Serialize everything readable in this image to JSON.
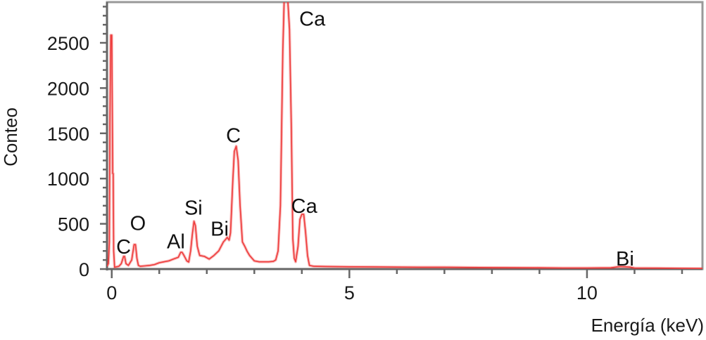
{
  "chart_data": {
    "type": "line",
    "title": "",
    "xlabel": "Energía (keV)",
    "ylabel": "Conteo",
    "xlim": [
      -0.1,
      12.43
    ],
    "ylim": [
      0,
      2950
    ],
    "x_ticks": [
      0,
      5,
      10
    ],
    "x_tick_labels": [
      "0",
      "5",
      "10"
    ],
    "x_minor_step": 1,
    "y_ticks": [
      0,
      500,
      1000,
      1500,
      2000,
      2500
    ],
    "y_tick_labels": [
      "0",
      "500",
      "1000",
      "1500",
      "2000",
      "2500"
    ],
    "y_minor_step": 100,
    "grid": false,
    "line_color": "#ee3b3b",
    "axis_color": "#666666",
    "series": [
      {
        "x": [
          -0.1,
          -0.07,
          -0.05,
          -0.04,
          -0.02,
          0.0,
          0.02,
          0.03,
          0.04,
          0.06,
          0.1,
          0.15,
          0.2,
          0.25,
          0.27,
          0.3,
          0.35,
          0.42,
          0.47,
          0.5,
          0.53,
          0.56,
          0.6,
          0.7,
          0.8,
          0.9,
          1.0,
          1.1,
          1.2,
          1.3,
          1.4,
          1.45,
          1.48,
          1.52,
          1.58,
          1.62,
          1.66,
          1.7,
          1.73,
          1.76,
          1.8,
          1.85,
          1.95,
          2.05,
          2.15,
          2.25,
          2.35,
          2.4,
          2.43,
          2.47,
          2.5,
          2.55,
          2.58,
          2.62,
          2.66,
          2.7,
          2.75,
          2.8,
          2.85,
          2.9,
          3.0,
          3.1,
          3.2,
          3.3,
          3.4,
          3.45,
          3.5,
          3.55,
          3.6,
          3.63,
          3.66,
          3.7,
          3.74,
          3.78,
          3.81,
          3.84,
          3.87,
          3.92,
          3.96,
          4.0,
          4.04,
          4.08,
          4.12,
          4.16,
          4.25,
          4.5,
          5.0,
          5.5,
          6.0,
          6.5,
          7.0,
          7.5,
          8.0,
          8.5,
          9.0,
          9.5,
          10.0,
          10.5,
          10.7,
          10.8,
          10.9,
          11.0,
          11.5,
          12.0,
          12.43
        ],
        "y": [
          30,
          60,
          300,
          1600,
          2585,
          2585,
          1056,
          1056,
          200,
          20,
          25,
          30,
          60,
          140,
          140,
          60,
          40,
          100,
          270,
          270,
          120,
          40,
          30,
          35,
          40,
          50,
          70,
          80,
          90,
          110,
          130,
          185,
          185,
          150,
          90,
          78,
          200,
          400,
          528,
          480,
          250,
          150,
          140,
          110,
          150,
          200,
          300,
          330,
          350,
          320,
          400,
          1000,
          1300,
          1358,
          1200,
          700,
          300,
          250,
          194,
          150,
          90,
          80,
          80,
          80,
          85,
          100,
          200,
          700,
          2415,
          3000,
          3000,
          3000,
          2650,
          1520,
          335,
          120,
          80,
          250,
          550,
          605,
          605,
          400,
          150,
          40,
          30,
          28,
          25,
          24,
          22,
          20,
          20,
          18,
          16,
          15,
          14,
          12,
          12,
          14,
          28,
          25,
          22,
          12,
          10,
          8,
          6
        ]
      }
    ],
    "annotations": [
      {
        "text": "C",
        "x": 0.25,
        "y": 170
      },
      {
        "text": "O",
        "x": 0.55,
        "y": 430
      },
      {
        "text": "Al",
        "x": 1.35,
        "y": 230
      },
      {
        "text": "Si",
        "x": 1.72,
        "y": 600
      },
      {
        "text": "Bi",
        "x": 2.27,
        "y": 370
      },
      {
        "text": "C",
        "x": 2.56,
        "y": 1400
      },
      {
        "text": "Ca",
        "x": 4.22,
        "y": 2690
      },
      {
        "text": "Ca",
        "x": 4.05,
        "y": 620
      },
      {
        "text": "Bi",
        "x": 10.8,
        "y": 40
      }
    ]
  }
}
